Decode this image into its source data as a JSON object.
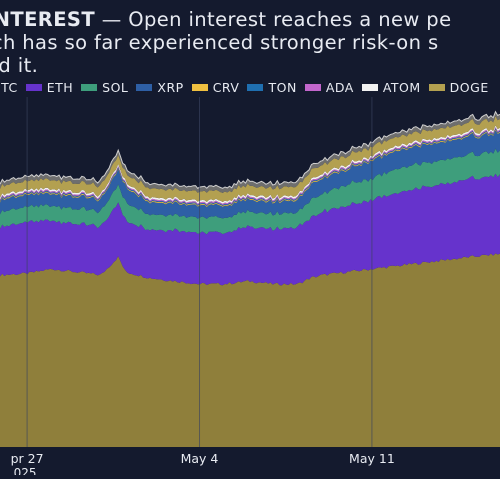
{
  "header": {
    "keyword": "INTEREST",
    "line1_rest": " — Open interest reaches a new pe",
    "line2": "ich has so far experienced stronger risk-on s",
    "line3": "ed it."
  },
  "chart_data": {
    "type": "area",
    "stacked": true,
    "grid": true,
    "x_labels": [
      {
        "text": "pr 27",
        "sub": "025",
        "t": 0.0
      },
      {
        "text": "May 4",
        "sub": "",
        "t": 7.0
      },
      {
        "text": "May 11",
        "sub": "",
        "t": 14.0
      }
    ],
    "x_range": [
      -1.1,
      19.2
    ],
    "series": [
      {
        "name": "BTC",
        "color": "#8f7f3b",
        "x": [
          -1.1,
          0,
          1,
          2,
          3,
          3.7,
          4,
          5,
          6,
          7,
          8,
          9,
          10,
          11,
          11.5,
          12,
          13,
          14,
          15,
          16,
          17,
          18,
          19.2
        ],
        "values": [
          57,
          57.5,
          59,
          58,
          57,
          63,
          58,
          56,
          55,
          54,
          54,
          55,
          54,
          54,
          56,
          57,
          58,
          59,
          60,
          61,
          62,
          63,
          64
        ]
      },
      {
        "name": "ETH",
        "color": "#6633cc",
        "x": [
          -1.1,
          0,
          1,
          2,
          3,
          3.7,
          4,
          5,
          6,
          7,
          8,
          9,
          10,
          11,
          11.5,
          12,
          13,
          14,
          15,
          16,
          17,
          18,
          19.2
        ],
        "values": [
          16,
          17,
          16,
          16,
          16,
          18,
          17,
          16,
          17,
          17,
          17,
          18,
          18,
          19,
          20,
          21,
          22,
          23,
          24,
          25,
          25,
          26,
          26
        ]
      },
      {
        "name": "SOL",
        "color": "#3e9e7c",
        "x": [
          -1.1,
          0,
          1,
          2,
          3,
          3.7,
          4,
          5,
          6,
          7,
          8,
          9,
          10,
          11,
          11.5,
          12,
          13,
          14,
          15,
          16,
          17,
          18,
          19.2
        ],
        "values": [
          5,
          5,
          5,
          5,
          5,
          6,
          6,
          5,
          5,
          5,
          5,
          5,
          5,
          5,
          6,
          6,
          7,
          7,
          8,
          8,
          8,
          8,
          8
        ]
      },
      {
        "name": "XRP",
        "color": "#2e5fa5",
        "x": [
          -1.1,
          0,
          1,
          2,
          3,
          3.7,
          4,
          5,
          6,
          7,
          8,
          9,
          10,
          11,
          11.5,
          12,
          13,
          14,
          15,
          16,
          17,
          18,
          19.2
        ],
        "values": [
          4,
          4,
          4,
          4,
          4,
          5,
          5,
          4,
          4,
          4,
          4,
          4,
          4,
          4,
          5,
          5,
          5,
          6,
          6,
          6,
          6,
          6,
          6
        ]
      },
      {
        "name": "CRV",
        "color": "#f0c040",
        "x": [
          -1.1,
          0,
          1,
          2,
          3,
          3.7,
          4,
          5,
          6,
          7,
          8,
          9,
          10,
          11,
          11.5,
          12,
          13,
          14,
          15,
          16,
          17,
          18,
          19.2
        ],
        "values": [
          0.3,
          0.3,
          0.3,
          0.3,
          0.3,
          0.3,
          0.3,
          0.3,
          0.3,
          0.3,
          0.3,
          0.3,
          0.3,
          0.3,
          0.3,
          0.3,
          0.3,
          0.3,
          0.3,
          0.3,
          0.3,
          0.3,
          0.3
        ]
      },
      {
        "name": "TON",
        "color": "#1f6fb0",
        "x": [
          -1.1,
          0,
          1,
          2,
          3,
          3.7,
          4,
          5,
          6,
          7,
          8,
          9,
          10,
          11,
          11.5,
          12,
          13,
          14,
          15,
          16,
          17,
          18,
          19.2
        ],
        "values": [
          0.3,
          0.3,
          0.3,
          0.3,
          0.3,
          0.3,
          0.3,
          0.3,
          0.3,
          0.3,
          0.3,
          0.3,
          0.3,
          0.3,
          0.3,
          0.3,
          0.3,
          0.3,
          0.3,
          0.3,
          0.3,
          0.3,
          0.3
        ]
      },
      {
        "name": "ADA",
        "color": "#c266cc",
        "x": [
          -1.1,
          0,
          1,
          2,
          3,
          3.7,
          4,
          5,
          6,
          7,
          8,
          9,
          10,
          11,
          11.5,
          12,
          13,
          14,
          15,
          16,
          17,
          18,
          19.2
        ],
        "values": [
          0.4,
          0.4,
          0.4,
          0.4,
          0.4,
          0.4,
          0.4,
          0.4,
          0.4,
          0.4,
          0.4,
          0.4,
          0.4,
          0.4,
          0.4,
          0.4,
          0.4,
          0.4,
          0.4,
          0.4,
          0.4,
          0.4,
          0.4
        ]
      },
      {
        "name": "ATOM",
        "color": "#f2f2f2",
        "x": [
          -1.1,
          0,
          1,
          2,
          3,
          3.7,
          4,
          5,
          6,
          7,
          8,
          9,
          10,
          11,
          11.5,
          12,
          13,
          14,
          15,
          16,
          17,
          18,
          19.2
        ],
        "values": [
          0.6,
          0.6,
          0.6,
          0.6,
          0.6,
          0.6,
          0.6,
          0.6,
          0.6,
          0.6,
          0.6,
          0.6,
          0.6,
          0.6,
          0.6,
          0.6,
          0.6,
          0.6,
          0.6,
          0.6,
          0.6,
          0.6,
          0.6
        ]
      },
      {
        "name": "DOGE",
        "color": "#b3a050",
        "x": [
          -1.1,
          0,
          1,
          2,
          3,
          3.7,
          4,
          5,
          6,
          7,
          8,
          9,
          10,
          11,
          11.5,
          12,
          13,
          14,
          15,
          16,
          17,
          18,
          19.2
        ],
        "values": [
          3,
          3,
          3,
          3,
          3,
          3,
          3,
          3,
          3,
          3,
          3,
          3,
          3,
          3,
          3,
          3,
          3,
          3,
          3,
          3,
          3,
          3,
          3
        ]
      },
      {
        "name": "",
        "color": "#6e6e6e",
        "x": [
          -1.1,
          0,
          1,
          2,
          3,
          3.7,
          4,
          5,
          6,
          7,
          8,
          9,
          10,
          11,
          11.5,
          12,
          13,
          14,
          15,
          16,
          17,
          18,
          19.2
        ],
        "values": [
          1.5,
          1.5,
          1.5,
          1.5,
          1.5,
          1.5,
          1.5,
          1.5,
          1.5,
          1.5,
          1.5,
          1.5,
          1.5,
          1.5,
          1.5,
          1.5,
          1.5,
          1.5,
          1.5,
          1.5,
          1.5,
          1.5,
          1.5
        ]
      }
    ],
    "ylim": [
      0,
      116
    ]
  }
}
